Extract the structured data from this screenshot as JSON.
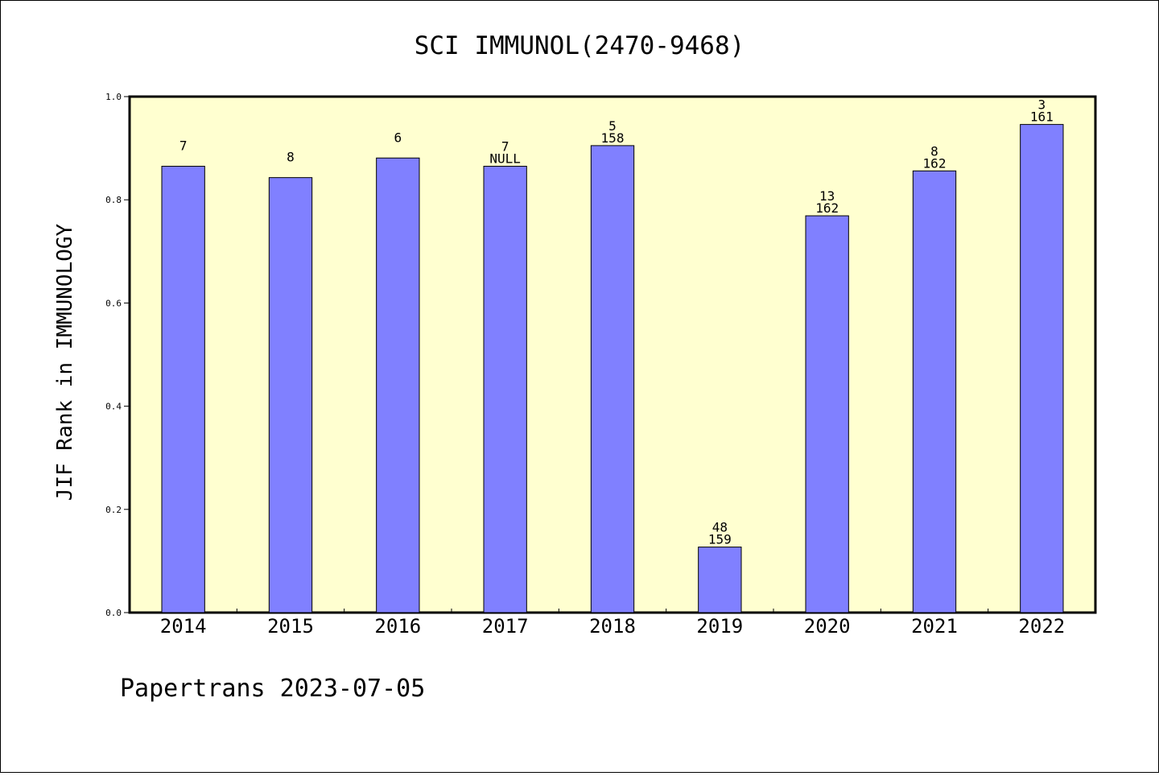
{
  "chart_data": {
    "type": "bar",
    "title": "SCI IMMUNOL(2470-9468)",
    "xlabel": "",
    "ylabel": "JIF Rank in IMMUNOLOGY",
    "ylim": [
      0,
      1.0
    ],
    "yticks": [
      "0.0",
      "0.2",
      "0.4",
      "0.6",
      "0.8",
      "1.0"
    ],
    "categories": [
      "2014",
      "2015",
      "2016",
      "2017",
      "2018",
      "2019",
      "2020",
      "2021",
      "2022"
    ],
    "values": [
      0.865,
      0.843,
      0.881,
      0.865,
      0.905,
      0.127,
      0.769,
      0.856,
      0.946
    ],
    "labels_top": [
      "7",
      "8",
      "6",
      "7",
      "5",
      "48",
      "13",
      "8",
      "3"
    ],
    "labels_bottom": [
      "",
      "",
      "",
      "NULL",
      "158",
      "159",
      "162",
      "162",
      "161"
    ],
    "grid": false,
    "legend": "none",
    "colors": {
      "bar_fill": "#8080ff",
      "plot_background": "#ffffd0",
      "page_background": "#ffffff",
      "axis": "#000000"
    }
  },
  "footer": {
    "text": "Papertrans 2023-07-05"
  }
}
